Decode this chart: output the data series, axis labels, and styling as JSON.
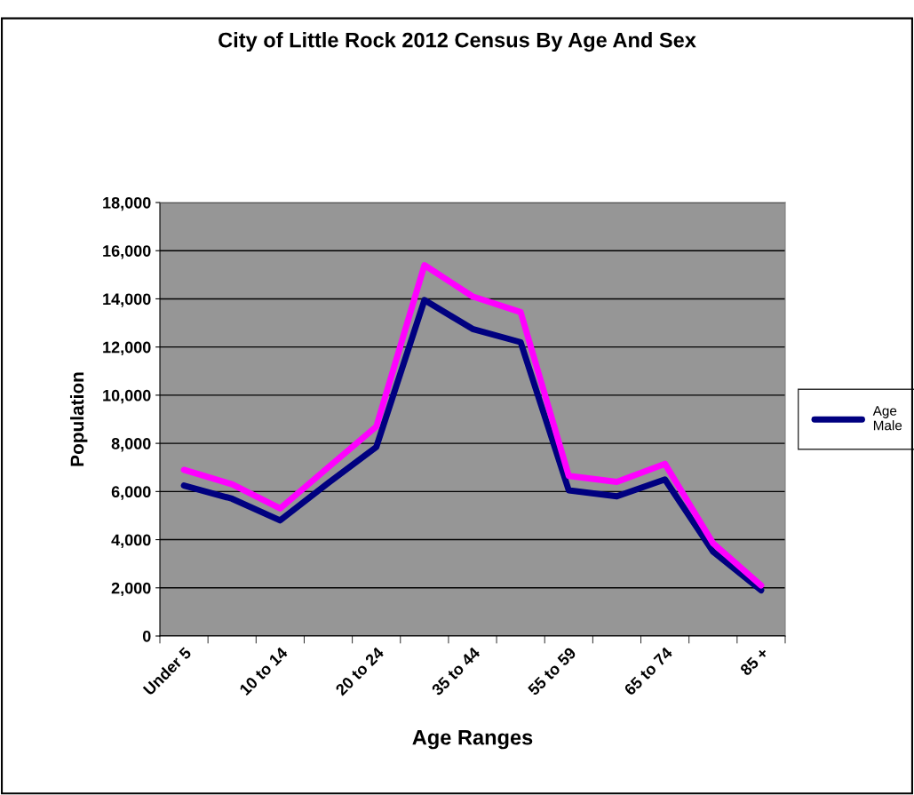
{
  "chart_data": {
    "type": "line",
    "title": "City of Little Rock 2012 Census By Age And Sex",
    "xlabel": "Age Ranges",
    "ylabel": "Population",
    "categories": [
      "Under 5",
      null,
      "10 to 14",
      null,
      "20 to 24",
      null,
      "35 to 44",
      null,
      "55 to 59",
      null,
      "65 to 74",
      null,
      "85 +"
    ],
    "series": [
      {
        "name": "Age\nMale",
        "color": "#000080",
        "values": [
          6250,
          5700,
          4800,
          6350,
          7850,
          13950,
          12750,
          12200,
          6050,
          5800,
          6500,
          3500,
          1900
        ]
      },
      {
        "color": "#ff00ff",
        "values": [
          6900,
          6300,
          5300,
          7000,
          8700,
          15400,
          14100,
          13450,
          6650,
          6400,
          7150,
          3850,
          2100
        ]
      }
    ],
    "ylim": [
      0,
      18000
    ],
    "yticks": [
      {
        "value": 0,
        "label": "0"
      },
      {
        "value": 2000,
        "label": "2,000"
      },
      {
        "value": 4000,
        "label": "4,000"
      },
      {
        "value": 6000,
        "label": "6,000"
      },
      {
        "value": 8000,
        "label": "8,000"
      },
      {
        "value": 10000,
        "label": "10,000"
      },
      {
        "value": 12000,
        "label": "12,000"
      },
      {
        "value": 14000,
        "label": "14,000"
      },
      {
        "value": 16000,
        "label": "16,000"
      },
      {
        "value": 18000,
        "label": "18,000"
      }
    ],
    "grid": "y",
    "legend": "right",
    "marker": "none",
    "line_style": "solid"
  }
}
